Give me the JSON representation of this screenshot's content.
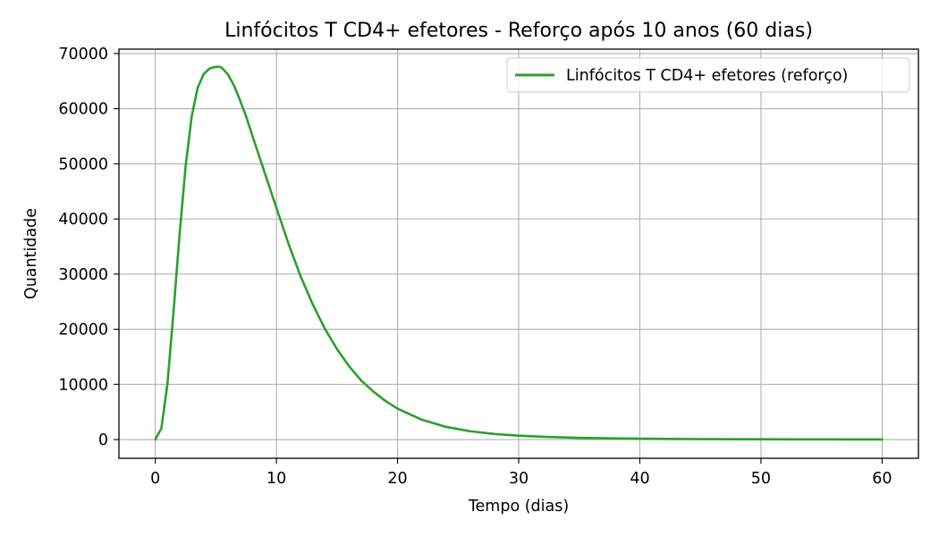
{
  "chart_data": {
    "type": "line",
    "title": "Linfócitos T CD4+ efetores - Reforço após 10 anos (60 dias)",
    "xlabel": "Tempo (dias)",
    "ylabel": "Quantidade",
    "xlim": [
      -3,
      63
    ],
    "ylim": [
      -3400,
      70800
    ],
    "xticks": [
      0,
      10,
      20,
      30,
      40,
      50,
      60
    ],
    "yticks": [
      0,
      10000,
      20000,
      30000,
      40000,
      50000,
      60000,
      70000
    ],
    "grid": true,
    "legend_position": "top-right",
    "series": [
      {
        "name": "Linfócitos T CD4+ efetores (reforço)",
        "color": "#2ca02c",
        "x": [
          0,
          0.5,
          1,
          1.5,
          2,
          2.5,
          3,
          3.5,
          4,
          4.5,
          5,
          5.3,
          5.5,
          6,
          6.5,
          7,
          7.5,
          8,
          9,
          10,
          11,
          12,
          13,
          14,
          15,
          16,
          17,
          18,
          19,
          20,
          22,
          24,
          26,
          28,
          30,
          32,
          35,
          40,
          45,
          50,
          55,
          60
        ],
        "y": [
          0,
          2000,
          10000,
          23000,
          37000,
          49500,
          58500,
          63800,
          66300,
          67300,
          67600,
          67600,
          67400,
          66200,
          64200,
          61500,
          58600,
          55200,
          48600,
          42000,
          35500,
          29600,
          24500,
          20100,
          16400,
          13300,
          10700,
          8700,
          7000,
          5600,
          3600,
          2300,
          1500,
          1000,
          700,
          500,
          300,
          150,
          80,
          50,
          30,
          20
        ]
      }
    ]
  }
}
